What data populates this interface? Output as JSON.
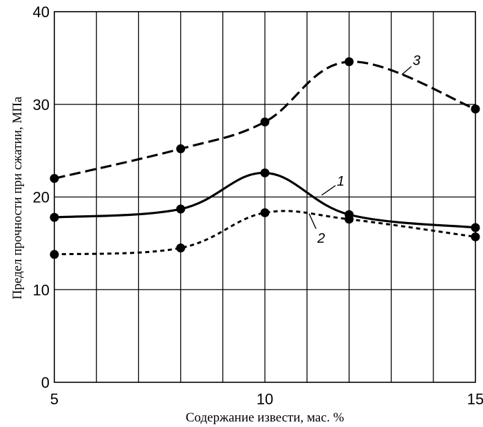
{
  "chart_data": {
    "type": "line",
    "xlabel": "Содержание извести, мас. %",
    "ylabel": "Предел прочности при сжатии, МПа",
    "xlim": [
      5,
      15
    ],
    "ylim": [
      0,
      40
    ],
    "x_ticks": [
      5,
      10,
      15
    ],
    "x_tick_labels": [
      "5",
      "10",
      "15"
    ],
    "y_ticks": [
      0,
      10,
      20,
      30,
      40
    ],
    "y_tick_labels": [
      "0",
      "10",
      "20",
      "30",
      "40"
    ],
    "grid": true,
    "grid_x_step": 1,
    "grid_y_step": 10,
    "series": [
      {
        "name": "1",
        "style": "solid",
        "color": "#000000",
        "points": [
          [
            5,
            17.8
          ],
          [
            8,
            18.7
          ],
          [
            10,
            22.6
          ],
          [
            12,
            18.1
          ],
          [
            15,
            16.7
          ]
        ]
      },
      {
        "name": "2",
        "style": "dotted",
        "color": "#000000",
        "points": [
          [
            5,
            13.8
          ],
          [
            8,
            14.5
          ],
          [
            10,
            18.3
          ],
          [
            12,
            17.6
          ],
          [
            15,
            15.7
          ]
        ]
      },
      {
        "name": "3",
        "style": "dashed",
        "color": "#000000",
        "points": [
          [
            5,
            22.0
          ],
          [
            8,
            25.2
          ],
          [
            10,
            28.1
          ],
          [
            12,
            34.6
          ],
          [
            15,
            29.5
          ]
        ]
      }
    ]
  }
}
